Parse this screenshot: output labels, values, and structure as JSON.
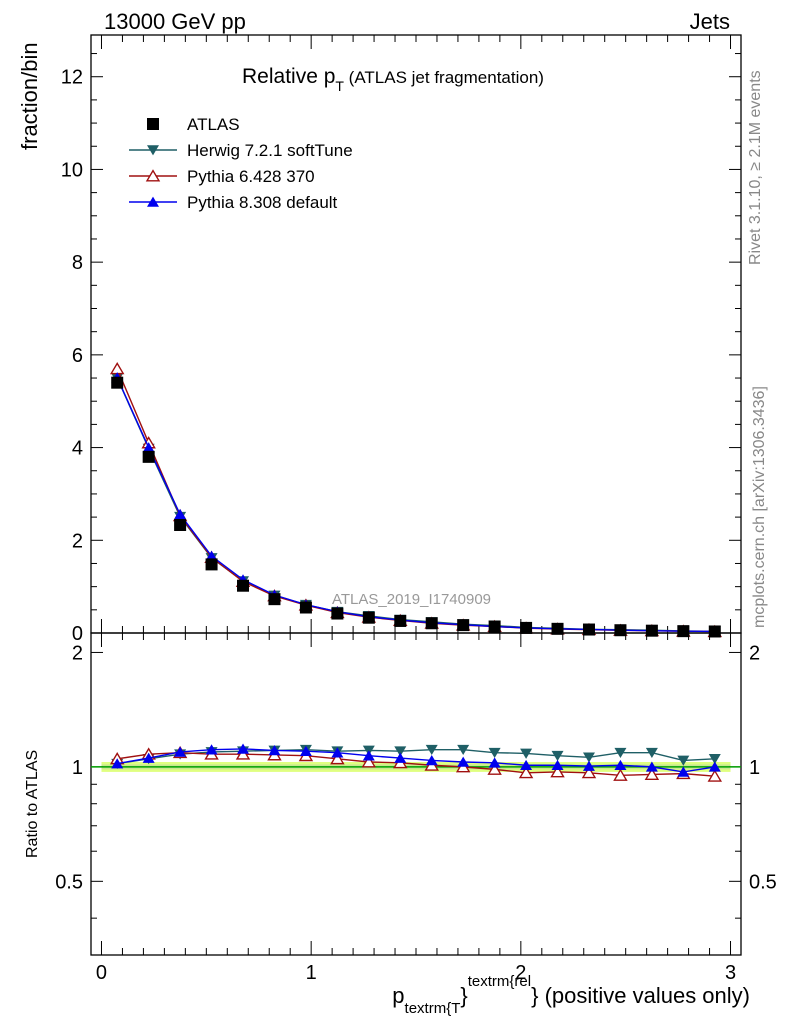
{
  "header": {
    "energy_label": "13000 GeV pp",
    "process_label": "Jets"
  },
  "side_labels": {
    "rivet": "Rivet 3.1.10, ≥ 2.1M events",
    "mcplots": "mcplots.cern.ch [arXiv:1306.3436]"
  },
  "chart_data": [
    {
      "type": "scatter",
      "panel": "main",
      "title": "Relative p",
      "title_sub": "T",
      "title_suffix": " (ATLAS jet fragmentation)",
      "ylabel": "fraction/bin",
      "watermark": "ATLAS_2019_I1740909",
      "xlim": [
        -0.05,
        3.05
      ],
      "ylim": [
        0,
        12.9
      ],
      "y_ticks": [
        0,
        2,
        4,
        6,
        8,
        10,
        12
      ],
      "legend_position": "top-left",
      "x": [
        0.075,
        0.225,
        0.375,
        0.525,
        0.675,
        0.825,
        0.975,
        1.125,
        1.275,
        1.425,
        1.575,
        1.725,
        1.875,
        2.025,
        2.175,
        2.325,
        2.475,
        2.625,
        2.775,
        2.925
      ],
      "series": [
        {
          "name": "ATLAS",
          "color": "#000000",
          "marker": "square",
          "values": [
            5.4,
            3.8,
            2.33,
            1.48,
            1.02,
            0.73,
            0.55,
            0.42,
            0.33,
            0.26,
            0.21,
            0.17,
            0.14,
            0.11,
            0.09,
            0.075,
            0.06,
            0.05,
            0.04,
            0.033
          ]
        },
        {
          "name": "Herwig 7.2.1 softTune",
          "color": "#1f5f66",
          "marker": "triangle-down",
          "values": [
            5.5,
            3.98,
            2.51,
            1.62,
            1.12,
            0.81,
            0.61,
            0.46,
            0.37,
            0.29,
            0.24,
            0.19,
            0.16,
            0.12,
            0.1,
            0.08,
            0.07,
            0.06,
            0.045,
            0.036
          ]
        },
        {
          "name": "Pythia 6.428 370",
          "color": "#a01010",
          "marker": "triangle-up-open",
          "values": [
            5.7,
            4.1,
            2.53,
            1.63,
            1.11,
            0.8,
            0.6,
            0.44,
            0.34,
            0.27,
            0.21,
            0.17,
            0.14,
            0.105,
            0.086,
            0.072,
            0.057,
            0.048,
            0.039,
            0.031
          ]
        },
        {
          "name": "Pythia 8.308 default",
          "color": "#0000ee",
          "marker": "triangle-up",
          "values": [
            5.51,
            4.0,
            2.56,
            1.66,
            1.15,
            0.82,
            0.61,
            0.46,
            0.35,
            0.28,
            0.22,
            0.18,
            0.14,
            0.11,
            0.09,
            0.076,
            0.061,
            0.05,
            0.039,
            0.033
          ]
        }
      ]
    },
    {
      "type": "line",
      "panel": "ratio",
      "ylabel": "Ratio to ATLAS",
      "xlabel_main": "p",
      "xlabel_sub": "textrm{T",
      "xlabel_sup": "textrm{rel",
      "xlabel_suffix": "} (positive values only)",
      "xlim": [
        -0.05,
        3.05
      ],
      "ylim": [
        0.32,
        2.25
      ],
      "x_ticks": [
        0,
        1,
        2,
        3
      ],
      "x_tick_labels": [
        "0",
        "1",
        "2",
        "3"
      ],
      "y_ticks": [
        0.5,
        1,
        2
      ],
      "y_tick_labels": [
        "0.5",
        "1",
        "2"
      ],
      "band": {
        "color": "#e0ff80",
        "inner_color": "#c8e890",
        "half_width": 0.03
      },
      "reference_line": {
        "value": 1,
        "color": "#00a000"
      },
      "x": [
        0.075,
        0.225,
        0.375,
        0.525,
        0.675,
        0.825,
        0.975,
        1.125,
        1.275,
        1.425,
        1.575,
        1.725,
        1.875,
        2.025,
        2.175,
        2.325,
        2.475,
        2.625,
        2.775,
        2.925
      ],
      "series": [
        {
          "name": "Herwig 7.2.1 softTune",
          "color": "#1f5f66",
          "marker": "triangle-down",
          "values": [
            1.02,
            1.05,
            1.08,
            1.095,
            1.1,
            1.105,
            1.11,
            1.1,
            1.105,
            1.1,
            1.11,
            1.11,
            1.09,
            1.085,
            1.07,
            1.06,
            1.09,
            1.09,
            1.04,
            1.05
          ]
        },
        {
          "name": "Pythia 6.428 370",
          "color": "#a01010",
          "marker": "triangle-up-open",
          "values": [
            1.05,
            1.08,
            1.09,
            1.08,
            1.08,
            1.075,
            1.07,
            1.05,
            1.03,
            1.025,
            1.01,
            1.0,
            0.985,
            0.965,
            0.97,
            0.965,
            0.95,
            0.955,
            0.96,
            0.945
          ]
        },
        {
          "name": "Pythia 8.308 default",
          "color": "#0000ee",
          "marker": "triangle-up",
          "values": [
            1.02,
            1.055,
            1.095,
            1.11,
            1.115,
            1.105,
            1.1,
            1.09,
            1.07,
            1.055,
            1.04,
            1.03,
            1.025,
            1.01,
            1.01,
            1.005,
            1.01,
            1.0,
            0.97,
            1.0
          ]
        }
      ]
    }
  ]
}
